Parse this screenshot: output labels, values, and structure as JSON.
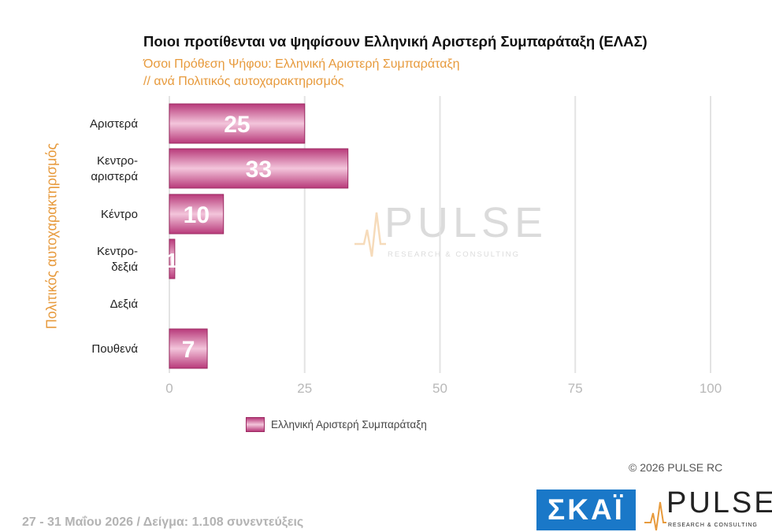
{
  "chart_data": {
    "type": "bar",
    "orientation": "horizontal",
    "title": "Ποιοι προτίθενται να ψηφίσουν Ελληνική Αριστερή Συμπαράταξη (ΕΛΑΣ)",
    "subtitle": [
      "Όσοι Πρόθεση Ψήφου: Ελληνική Αριστερή Συμπαράταξη",
      " // ανά Πολιτικός  αυτοχαρακτηρισμός"
    ],
    "ylabel": "Πολιτικός  αυτοχαρακτηρισμός",
    "xlabel": "",
    "categories": [
      [
        "Αριστερά"
      ],
      [
        "Κεντρο-",
        "αριστερά"
      ],
      [
        "Κέντρο"
      ],
      [
        "Κεντρο-",
        "δεξιά"
      ],
      [
        "Δεξιά"
      ],
      [
        "Πουθενά"
      ]
    ],
    "series": [
      {
        "name": "Ελληνική Αριστερή Συμπαράταξη",
        "values": [
          25,
          33,
          10,
          1,
          0,
          7
        ],
        "labels": [
          "25",
          "33",
          "10",
          "1",
          "",
          "7"
        ]
      }
    ],
    "xlim": [
      0,
      100
    ],
    "xticks": [
      0,
      25,
      50,
      75,
      100
    ],
    "grid": true,
    "legend_position": "bottom"
  },
  "colors": {
    "bar_dark": "#b83a7a",
    "bar_light": "#f3c5db",
    "bar_edge": "#9c2a62",
    "accent_orange": "#e79a3c",
    "grid": "#e3e3e3",
    "skai_blue": "#1a78c8"
  },
  "footer": {
    "copyright": "© 2026 PULSE RC",
    "note": "27 - 31 Μαΐου 2026  /  Δείγμα:  1.108 συνεντεύξεις"
  },
  "logos": {
    "skai": "ΣΚΑΪ",
    "pulse": "PULSE",
    "pulse_sub": "RESEARCH & CONSULTING",
    "watermark": "PULSE",
    "watermark_sub": "RESEARCH & CONSULTING"
  }
}
